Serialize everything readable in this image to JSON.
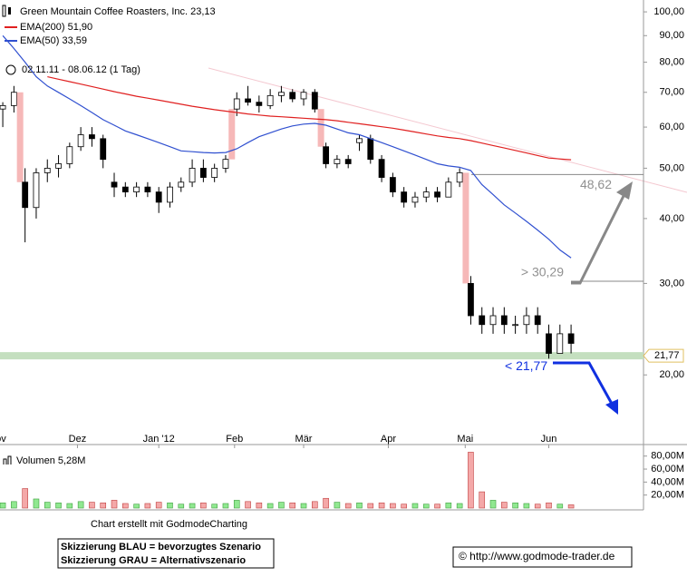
{
  "chart_data": [
    {
      "type": "candlestick",
      "title": "Green Mountain Coffee Roasters, Inc. 23,13",
      "subtitle": "02.11.11 - 08.06.12 (1 Tag)",
      "open": [
        65,
        66,
        47,
        42,
        49,
        50,
        51,
        55,
        58,
        57,
        47,
        46,
        45,
        46,
        45,
        43,
        46,
        47,
        50,
        48,
        50,
        65,
        68,
        67,
        66,
        69,
        70,
        68,
        70,
        55,
        51,
        52,
        56,
        57,
        52,
        48,
        45,
        43,
        44,
        45,
        44,
        47,
        30,
        26,
        25,
        26,
        25,
        25,
        26,
        24,
        22,
        24
      ],
      "high": [
        67,
        72,
        50,
        50,
        52,
        53,
        56,
        60,
        60,
        58,
        49,
        47,
        47,
        47,
        46,
        47,
        48,
        52,
        52,
        51,
        53,
        70,
        72,
        69,
        71,
        72,
        71,
        71,
        71,
        56,
        53,
        53,
        58,
        58,
        53,
        49,
        46,
        45,
        46,
        46,
        48,
        50,
        31,
        27,
        27,
        27,
        26,
        27,
        27,
        25,
        25,
        25
      ],
      "low": [
        60,
        64,
        36,
        40,
        47,
        48,
        50,
        54,
        55,
        50,
        44,
        44,
        44,
        44,
        41,
        42,
        45,
        46,
        47,
        47,
        49,
        63,
        66,
        64,
        65,
        67,
        67,
        66,
        64,
        50,
        50,
        50,
        54,
        51,
        47,
        44,
        42,
        42,
        43,
        43,
        44,
        46,
        25,
        24,
        24,
        24,
        24,
        24,
        24,
        21.5,
        22,
        22
      ],
      "close": [
        66,
        70,
        42,
        49,
        50,
        51,
        55,
        58,
        57,
        52,
        46,
        45,
        46,
        45,
        43,
        46,
        47,
        50,
        48,
        50,
        52,
        68,
        67,
        66,
        69,
        70,
        68,
        70,
        65,
        51,
        52,
        51,
        57,
        52,
        48,
        45,
        43,
        44,
        45,
        44,
        47,
        49,
        26,
        25,
        26,
        25,
        25,
        26,
        25,
        22,
        24,
        23
      ],
      "series": [
        {
          "name": "EMA(200) 51,90",
          "color": "#e02020",
          "values": [
            null,
            null,
            null,
            null,
            75,
            74.2,
            73.4,
            72.6,
            71.8,
            71,
            70.2,
            69.5,
            68.8,
            68.2,
            67.6,
            67,
            66.4,
            65.8,
            65.3,
            64.8,
            64.4,
            64,
            63.6,
            63.3,
            63,
            62.8,
            62.6,
            62.4,
            62.2,
            62,
            61.7,
            61.3,
            60.9,
            60.5,
            60.1,
            59.7,
            59.2,
            58.7,
            58.2,
            57.7,
            57.3,
            57,
            56.5,
            55.9,
            55.3,
            54.7,
            54.1,
            53.5,
            52.9,
            52.3,
            52.1,
            51.9
          ]
        },
        {
          "name": "EMA(50) 33,59",
          "color": "#3050d0",
          "values": [
            90,
            85,
            80,
            75,
            72,
            70,
            68,
            66,
            64,
            62,
            60.5,
            59,
            58,
            57,
            56,
            55,
            54,
            53.8,
            53.6,
            53.5,
            53.6,
            54.5,
            56,
            57.5,
            58.5,
            59.5,
            60.3,
            60.8,
            61,
            60.5,
            59.5,
            58.5,
            58,
            57,
            56,
            55,
            54,
            53,
            52,
            51,
            50.5,
            50.2,
            49.5,
            46.5,
            44.5,
            42.5,
            41,
            39.5,
            38,
            36.5,
            34.8,
            33.59
          ]
        }
      ],
      "log_scale": true,
      "ylim": [
        15.6,
        105.4
      ],
      "yticks": [
        {
          "value": 20,
          "label": "20,00"
        },
        {
          "value": 30,
          "label": "30,00"
        },
        {
          "value": 40,
          "label": "40,00"
        },
        {
          "value": 50,
          "label": "50,00"
        },
        {
          "value": 60,
          "label": "60,00"
        },
        {
          "value": 70,
          "label": "70,00"
        },
        {
          "value": 80,
          "label": "80,00"
        },
        {
          "value": 90,
          "label": "90,00"
        },
        {
          "value": 100,
          "label": "100,00"
        }
      ],
      "xlim": [
        -0.25,
        57.5
      ],
      "xticks": [
        {
          "value": -0.5,
          "label": "Nov"
        },
        {
          "value": 6.7,
          "label": "Dez"
        },
        {
          "value": 14,
          "label": "Jan '12"
        },
        {
          "value": 20.8,
          "label": "Feb"
        },
        {
          "value": 27,
          "label": "Mär"
        },
        {
          "value": 34.6,
          "label": "Apr"
        },
        {
          "value": 41.5,
          "label": "Mai"
        },
        {
          "value": 49,
          "label": "Jun"
        }
      ],
      "annotations": [
        {
          "value": 48.62,
          "label": "48,62",
          "color": "#909090"
        },
        {
          "value": 30.29,
          "label": "> 30,29",
          "color": "#909090"
        },
        {
          "value": 21.77,
          "label": "< 21,77",
          "color": "#1030e0",
          "tag": "21,77"
        }
      ]
    },
    {
      "type": "bar",
      "title": "Volumen 5,28M",
      "values": [
        8,
        10,
        30,
        14,
        9,
        8,
        7,
        10,
        9,
        8,
        12,
        7,
        6,
        7,
        9,
        8,
        6,
        7,
        8,
        6,
        7,
        12,
        10,
        8,
        7,
        9,
        8,
        7,
        10,
        15,
        9,
        7,
        8,
        7,
        8,
        7,
        6,
        7,
        6,
        6,
        8,
        7,
        86,
        25,
        12,
        9,
        8,
        7,
        6,
        8,
        6,
        5
      ],
      "ylim": [
        0,
        88
      ],
      "yticks": [
        {
          "value": 20,
          "label": "20,00M"
        },
        {
          "value": 40,
          "label": "40,00M"
        },
        {
          "value": 60,
          "label": "60,00M"
        },
        {
          "value": 80,
          "label": "80,00M"
        }
      ]
    }
  ],
  "footer": {
    "credit": "Chart erstellt mit GodmodeCharting",
    "scenario_lines": [
      "Skizzierung BLAU = bevorzugtes Szenario",
      "Skizzierung GRAU = Alternativszenario"
    ],
    "source": "© http://www.godmode-trader.de"
  }
}
